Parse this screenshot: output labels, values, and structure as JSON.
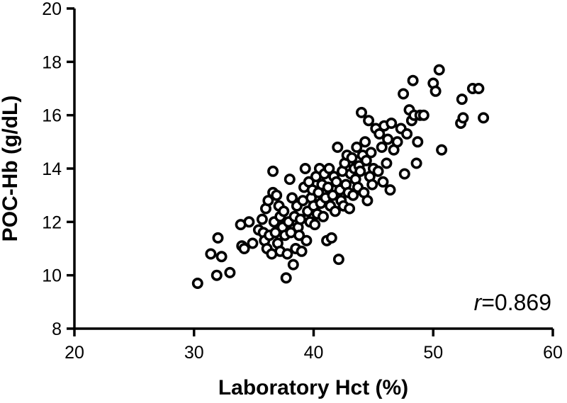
{
  "chart_data": {
    "type": "scatter",
    "xlabel": "Laboratory Hct (%)",
    "ylabel": "POC-Hb (g/dL)",
    "xlim": [
      20,
      60
    ],
    "ylim": [
      8,
      20
    ],
    "x_ticks": [
      20,
      30,
      40,
      50,
      60
    ],
    "y_ticks": [
      8,
      10,
      12,
      14,
      16,
      18,
      20
    ],
    "grid": false,
    "annotation": {
      "var": "r",
      "value": "=0.869",
      "position": "bottom-right"
    },
    "series": [
      {
        "points": [
          [
            30.3,
            9.7
          ],
          [
            31.4,
            10.8
          ],
          [
            31.9,
            10.0
          ],
          [
            32.0,
            11.4
          ],
          [
            32.3,
            10.7
          ],
          [
            33.0,
            10.1
          ],
          [
            33.9,
            11.9
          ],
          [
            34.0,
            11.1
          ],
          [
            34.2,
            11.0
          ],
          [
            34.6,
            12.0
          ],
          [
            34.9,
            11.2
          ],
          [
            35.4,
            11.7
          ],
          [
            35.7,
            12.1
          ],
          [
            35.8,
            11.6
          ],
          [
            35.9,
            11.3
          ],
          [
            36.0,
            12.5
          ],
          [
            36.1,
            11.0
          ],
          [
            36.2,
            12.8
          ],
          [
            36.3,
            11.5
          ],
          [
            36.5,
            10.8
          ],
          [
            36.6,
            13.1
          ],
          [
            36.6,
            13.9
          ],
          [
            36.7,
            12.0
          ],
          [
            36.8,
            11.6
          ],
          [
            36.9,
            13.0
          ],
          [
            37.0,
            11.2
          ],
          [
            37.1,
            12.6
          ],
          [
            37.2,
            12.2
          ],
          [
            37.2,
            10.9
          ],
          [
            37.4,
            11.8
          ],
          [
            37.5,
            12.4
          ],
          [
            37.6,
            11.5
          ],
          [
            37.7,
            9.9
          ],
          [
            37.8,
            10.8
          ],
          [
            37.9,
            12.0
          ],
          [
            38.0,
            13.6
          ],
          [
            38.1,
            11.6
          ],
          [
            38.2,
            12.9
          ],
          [
            38.3,
            10.4
          ],
          [
            38.4,
            12.2
          ],
          [
            38.5,
            11.0
          ],
          [
            38.6,
            12.6
          ],
          [
            38.7,
            11.8
          ],
          [
            38.8,
            11.5
          ],
          [
            38.9,
            12.1
          ],
          [
            39.0,
            10.9
          ],
          [
            39.1,
            12.8
          ],
          [
            39.2,
            13.3
          ],
          [
            39.3,
            14.0
          ],
          [
            39.4,
            11.3
          ],
          [
            39.5,
            12.4
          ],
          [
            39.6,
            13.5
          ],
          [
            39.7,
            12.0
          ],
          [
            39.8,
            12.9
          ],
          [
            39.9,
            13.2
          ],
          [
            40.0,
            12.6
          ],
          [
            40.1,
            11.9
          ],
          [
            40.2,
            13.7
          ],
          [
            40.3,
            12.3
          ],
          [
            40.4,
            13.1
          ],
          [
            40.5,
            14.0
          ],
          [
            40.6,
            12.7
          ],
          [
            40.7,
            13.4
          ],
          [
            40.8,
            12.2
          ],
          [
            40.9,
            13.8
          ],
          [
            41.0,
            12.9
          ],
          [
            41.1,
            11.3
          ],
          [
            41.2,
            13.3
          ],
          [
            41.3,
            14.0
          ],
          [
            41.4,
            12.6
          ],
          [
            41.5,
            11.4
          ],
          [
            41.6,
            13.0
          ],
          [
            41.7,
            13.7
          ],
          [
            41.8,
            12.4
          ],
          [
            41.9,
            13.5
          ],
          [
            42.0,
            14.8
          ],
          [
            42.1,
            10.6
          ],
          [
            42.2,
            13.2
          ],
          [
            42.3,
            12.8
          ],
          [
            42.4,
            13.9
          ],
          [
            42.5,
            12.6
          ],
          [
            42.6,
            14.2
          ],
          [
            42.7,
            13.4
          ],
          [
            42.8,
            14.5
          ],
          [
            42.9,
            13.1
          ],
          [
            43.0,
            12.5
          ],
          [
            43.1,
            13.8
          ],
          [
            43.2,
            14.4
          ],
          [
            43.3,
            13.0
          ],
          [
            43.4,
            14.0
          ],
          [
            43.5,
            13.6
          ],
          [
            43.6,
            14.8
          ],
          [
            43.7,
            13.3
          ],
          [
            43.8,
            14.1
          ],
          [
            43.9,
            13.9
          ],
          [
            44.0,
            16.1
          ],
          [
            44.1,
            14.5
          ],
          [
            44.2,
            13.1
          ],
          [
            44.3,
            15.0
          ],
          [
            44.4,
            14.3
          ],
          [
            44.5,
            12.8
          ],
          [
            44.6,
            15.8
          ],
          [
            44.7,
            13.7
          ],
          [
            44.8,
            14.6
          ],
          [
            44.9,
            13.4
          ],
          [
            45.0,
            14.0
          ],
          [
            45.2,
            15.5
          ],
          [
            45.4,
            13.9
          ],
          [
            45.5,
            15.3
          ],
          [
            45.7,
            14.8
          ],
          [
            45.8,
            13.5
          ],
          [
            45.9,
            15.6
          ],
          [
            46.1,
            14.2
          ],
          [
            46.2,
            15.1
          ],
          [
            46.4,
            13.2
          ],
          [
            46.5,
            15.7
          ],
          [
            46.7,
            14.7
          ],
          [
            47.0,
            15.0
          ],
          [
            47.3,
            15.5
          ],
          [
            47.5,
            16.8
          ],
          [
            47.6,
            13.8
          ],
          [
            47.8,
            15.3
          ],
          [
            48.0,
            16.2
          ],
          [
            48.2,
            15.8
          ],
          [
            48.3,
            17.3
          ],
          [
            48.4,
            16.0
          ],
          [
            48.6,
            14.2
          ],
          [
            48.7,
            15.0
          ],
          [
            48.9,
            16.0
          ],
          [
            49.2,
            16.0
          ],
          [
            50.0,
            17.2
          ],
          [
            50.2,
            16.9
          ],
          [
            50.5,
            17.7
          ],
          [
            50.7,
            14.7
          ],
          [
            52.3,
            15.7
          ],
          [
            52.4,
            16.6
          ],
          [
            52.5,
            15.9
          ],
          [
            53.3,
            17.0
          ],
          [
            53.8,
            17.0
          ],
          [
            54.2,
            15.9
          ]
        ]
      }
    ]
  }
}
